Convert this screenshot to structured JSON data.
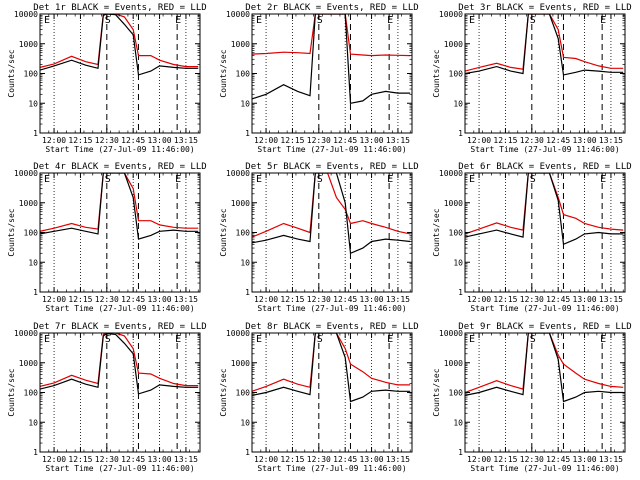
{
  "figure": {
    "background": "#ffffff",
    "event_color": "#000000",
    "lld_color": "#e00000",
    "ytick_labels": [
      "1",
      "10",
      "100",
      "1000",
      "10000"
    ],
    "xtick_labels": [
      "12:00",
      "12:15",
      "12:30",
      "12:45",
      "13:00",
      "13:15"
    ],
    "marker_labels": [
      "E",
      "S",
      "E"
    ],
    "ylabel": "Counts/sec",
    "xlabel": "Start Time (27-Jul-09 11:46:00)"
  },
  "chart_data": [
    {
      "type": "line",
      "title": "Det 1r BLACK = Events, RED = LLD",
      "xlim": [
        "11:52",
        "13:23"
      ],
      "ylim": [
        1,
        10000
      ],
      "yscale": "log",
      "ylabel": "Counts/sec",
      "xlabel": "Start Time (27-Jul-09 11:46:00)",
      "x": [
        "11:52",
        "12:00",
        "12:10",
        "12:18",
        "12:25",
        "12:28",
        "12:30",
        "12:35",
        "12:40",
        "12:45",
        "12:48",
        "12:55",
        "13:00",
        "13:08",
        "13:15",
        "13:22"
      ],
      "series": [
        {
          "name": "Events",
          "color": "#000000",
          "values": [
            130,
            180,
            280,
            190,
            150,
            9000,
            10000,
            9500,
            4500,
            2000,
            90,
            120,
            180,
            160,
            150,
            150
          ]
        },
        {
          "name": "LLD",
          "color": "#e00000",
          "values": [
            160,
            210,
            380,
            250,
            200,
            10000,
            10000,
            10000,
            8000,
            3000,
            400,
            400,
            280,
            200,
            170,
            170
          ]
        }
      ],
      "vlines": [
        "12:30",
        "12:48",
        "13:10"
      ],
      "dotted_vlines": [
        "12:00",
        "12:15",
        "12:45",
        "13:00",
        "13:15"
      ]
    },
    {
      "type": "line",
      "title": "Det 2r BLACK = Events, RED = LLD",
      "xlim": [
        "11:52",
        "13:23"
      ],
      "ylim": [
        1,
        10000
      ],
      "yscale": "log",
      "ylabel": "Counts/sec",
      "xlabel": "Start Time (27-Jul-09 11:46:00)",
      "x": [
        "11:52",
        "12:00",
        "12:10",
        "12:18",
        "12:25",
        "12:28",
        "12:30",
        "12:35",
        "12:40",
        "12:45",
        "12:48",
        "12:55",
        "13:00",
        "13:08",
        "13:15",
        "13:22"
      ],
      "series": [
        {
          "name": "Events",
          "color": "#000000",
          "values": [
            14,
            20,
            42,
            25,
            18,
            10000,
            10000,
            10000,
            10000,
            10000,
            10,
            12,
            20,
            25,
            22,
            22
          ]
        },
        {
          "name": "LLD",
          "color": "#e00000",
          "values": [
            450,
            470,
            520,
            500,
            470,
            10000,
            10000,
            10000,
            10000,
            10000,
            450,
            420,
            400,
            420,
            410,
            400
          ]
        }
      ],
      "vlines": [
        "12:30",
        "12:48",
        "13:10"
      ],
      "dotted_vlines": [
        "12:00",
        "12:15",
        "12:45",
        "13:00",
        "13:15"
      ]
    },
    {
      "type": "line",
      "title": "Det 3r BLACK = Events, RED = LLD",
      "xlim": [
        "11:52",
        "13:23"
      ],
      "ylim": [
        1,
        10000
      ],
      "yscale": "log",
      "ylabel": "Counts/sec",
      "xlabel": "Start Time (27-Jul-09 11:46:00)",
      "x": [
        "11:52",
        "12:00",
        "12:10",
        "12:18",
        "12:25",
        "12:28",
        "12:30",
        "12:35",
        "12:40",
        "12:45",
        "12:48",
        "12:55",
        "13:00",
        "13:08",
        "13:15",
        "13:22"
      ],
      "series": [
        {
          "name": "Events",
          "color": "#000000",
          "values": [
            100,
            120,
            170,
            120,
            100,
            10000,
            10000,
            10000,
            10000,
            1500,
            90,
            110,
            130,
            120,
            110,
            110
          ]
        },
        {
          "name": "LLD",
          "color": "#e00000",
          "values": [
            120,
            160,
            220,
            160,
            140,
            10000,
            10000,
            10000,
            10000,
            3000,
            350,
            320,
            250,
            180,
            150,
            150
          ]
        }
      ],
      "vlines": [
        "12:30",
        "12:48",
        "13:10"
      ],
      "dotted_vlines": [
        "12:00",
        "12:15",
        "12:45",
        "13:00",
        "13:15"
      ]
    },
    {
      "type": "line",
      "title": "Det 4r BLACK = Events, RED = LLD",
      "xlim": [
        "11:52",
        "13:23"
      ],
      "ylim": [
        1,
        10000
      ],
      "yscale": "log",
      "ylabel": "Counts/sec",
      "xlabel": "Start Time (27-Jul-09 11:46:00)",
      "x": [
        "11:52",
        "12:00",
        "12:10",
        "12:18",
        "12:25",
        "12:28",
        "12:30",
        "12:35",
        "12:40",
        "12:45",
        "12:48",
        "12:55",
        "13:00",
        "13:08",
        "13:15",
        "13:22"
      ],
      "series": [
        {
          "name": "Events",
          "color": "#000000",
          "values": [
            90,
            110,
            140,
            110,
            90,
            10000,
            10000,
            10000,
            10000,
            1500,
            60,
            80,
            110,
            120,
            110,
            110
          ]
        },
        {
          "name": "LLD",
          "color": "#e00000",
          "values": [
            110,
            140,
            200,
            150,
            130,
            10000,
            10000,
            10000,
            10000,
            3000,
            250,
            250,
            180,
            150,
            140,
            140
          ]
        }
      ],
      "vlines": [
        "12:30",
        "12:48",
        "13:10"
      ],
      "dotted_vlines": [
        "12:00",
        "12:15",
        "12:45",
        "13:00",
        "13:15"
      ]
    },
    {
      "type": "line",
      "title": "Det 5r BLACK = Events, RED = LLD",
      "xlim": [
        "11:52",
        "13:23"
      ],
      "ylim": [
        1,
        10000
      ],
      "yscale": "log",
      "ylabel": "Counts/sec",
      "xlabel": "Start Time (27-Jul-09 11:46:00)",
      "x": [
        "11:52",
        "12:00",
        "12:10",
        "12:18",
        "12:25",
        "12:28",
        "12:30",
        "12:35",
        "12:40",
        "12:45",
        "12:48",
        "12:55",
        "13:00",
        "13:08",
        "13:15",
        "13:22"
      ],
      "series": [
        {
          "name": "Events",
          "color": "#000000",
          "values": [
            45,
            55,
            80,
            60,
            50,
            10000,
            10000,
            10000,
            10000,
            1000,
            20,
            30,
            50,
            60,
            55,
            50
          ]
        },
        {
          "name": "LLD",
          "color": "#e00000",
          "values": [
            70,
            110,
            200,
            140,
            100,
            10000,
            10000,
            10000,
            1500,
            600,
            200,
            250,
            200,
            150,
            110,
            90
          ]
        }
      ],
      "vlines": [
        "12:30",
        "12:48",
        "13:10"
      ],
      "dotted_vlines": [
        "12:00",
        "12:15",
        "12:45",
        "13:00",
        "13:15"
      ]
    },
    {
      "type": "line",
      "title": "Det 6r BLACK = Events, RED = LLD",
      "xlim": [
        "11:52",
        "13:23"
      ],
      "ylim": [
        1,
        10000
      ],
      "yscale": "log",
      "ylabel": "Counts/sec",
      "xlabel": "Start Time (27-Jul-09 11:46:00)",
      "x": [
        "11:52",
        "12:00",
        "12:10",
        "12:18",
        "12:25",
        "12:28",
        "12:30",
        "12:35",
        "12:40",
        "12:45",
        "12:48",
        "12:55",
        "13:00",
        "13:08",
        "13:15",
        "13:22"
      ],
      "series": [
        {
          "name": "Events",
          "color": "#000000",
          "values": [
            70,
            90,
            120,
            90,
            70,
            10000,
            10000,
            10000,
            10000,
            1200,
            40,
            60,
            90,
            100,
            90,
            90
          ]
        },
        {
          "name": "LLD",
          "color": "#e00000",
          "values": [
            90,
            130,
            210,
            150,
            120,
            10000,
            10000,
            10000,
            10000,
            1500,
            400,
            300,
            200,
            150,
            130,
            120
          ]
        }
      ],
      "vlines": [
        "12:30",
        "12:48",
        "13:10"
      ],
      "dotted_vlines": [
        "12:00",
        "12:15",
        "12:45",
        "13:00",
        "13:15"
      ]
    },
    {
      "type": "line",
      "title": "Det 7r BLACK = Events, RED = LLD",
      "xlim": [
        "11:52",
        "13:23"
      ],
      "ylim": [
        1,
        10000
      ],
      "yscale": "log",
      "ylabel": "Counts/sec",
      "xlabel": "Start Time (27-Jul-09 11:46:00)",
      "x": [
        "11:52",
        "12:00",
        "12:10",
        "12:18",
        "12:25",
        "12:28",
        "12:30",
        "12:35",
        "12:40",
        "12:45",
        "12:48",
        "12:55",
        "13:00",
        "13:08",
        "13:15",
        "13:22"
      ],
      "series": [
        {
          "name": "Events",
          "color": "#000000",
          "values": [
            130,
            170,
            280,
            190,
            150,
            8000,
            9500,
            9000,
            4500,
            2000,
            90,
            120,
            180,
            160,
            150,
            150
          ]
        },
        {
          "name": "LLD",
          "color": "#e00000",
          "values": [
            160,
            210,
            380,
            260,
            200,
            9000,
            10000,
            10000,
            8000,
            3000,
            450,
            420,
            300,
            200,
            170,
            170
          ]
        }
      ],
      "vlines": [
        "12:30",
        "12:48",
        "13:10"
      ],
      "dotted_vlines": [
        "12:00",
        "12:15",
        "12:45",
        "13:00",
        "13:15"
      ]
    },
    {
      "type": "line",
      "title": "Det 8r BLACK = Events, RED = LLD",
      "xlim": [
        "11:52",
        "13:23"
      ],
      "ylim": [
        1,
        10000
      ],
      "yscale": "log",
      "ylabel": "Counts/sec",
      "xlabel": "Start Time (27-Jul-09 11:46:00)",
      "x": [
        "11:52",
        "12:00",
        "12:10",
        "12:18",
        "12:25",
        "12:28",
        "12:30",
        "12:35",
        "12:40",
        "12:45",
        "12:48",
        "12:55",
        "13:00",
        "13:08",
        "13:15",
        "13:22"
      ],
      "series": [
        {
          "name": "Events",
          "color": "#000000",
          "values": [
            80,
            100,
            150,
            110,
            85,
            10000,
            10000,
            10000,
            10000,
            1500,
            50,
            70,
            110,
            120,
            110,
            110
          ]
        },
        {
          "name": "LLD",
          "color": "#e00000",
          "values": [
            110,
            160,
            280,
            190,
            150,
            10000,
            10000,
            10000,
            10000,
            3000,
            900,
            500,
            300,
            220,
            180,
            180
          ]
        }
      ],
      "vlines": [
        "12:30",
        "12:48",
        "13:10"
      ],
      "dotted_vlines": [
        "12:00",
        "12:15",
        "12:45",
        "13:00",
        "13:15"
      ]
    },
    {
      "type": "line",
      "title": "Det 9r BLACK = Events, RED = LLD",
      "xlim": [
        "11:52",
        "13:23"
      ],
      "ylim": [
        1,
        10000
      ],
      "yscale": "log",
      "ylabel": "Counts/sec",
      "xlabel": "Start Time (27-Jul-09 11:46:00)",
      "x": [
        "11:52",
        "12:00",
        "12:10",
        "12:18",
        "12:25",
        "12:28",
        "12:30",
        "12:35",
        "12:40",
        "12:45",
        "12:48",
        "12:55",
        "13:00",
        "13:08",
        "13:15",
        "13:22"
      ],
      "series": [
        {
          "name": "Events",
          "color": "#000000",
          "values": [
            80,
            100,
            150,
            110,
            85,
            10000,
            10000,
            10000,
            10000,
            1300,
            50,
            70,
            100,
            110,
            100,
            100
          ]
        },
        {
          "name": "LLD",
          "color": "#e00000",
          "values": [
            100,
            150,
            250,
            170,
            130,
            10000,
            10000,
            10000,
            10000,
            1800,
            900,
            450,
            280,
            200,
            160,
            150
          ]
        }
      ],
      "vlines": [
        "12:30",
        "12:48",
        "13:10"
      ],
      "dotted_vlines": [
        "12:00",
        "12:15",
        "12:45",
        "13:00",
        "13:15"
      ]
    }
  ]
}
